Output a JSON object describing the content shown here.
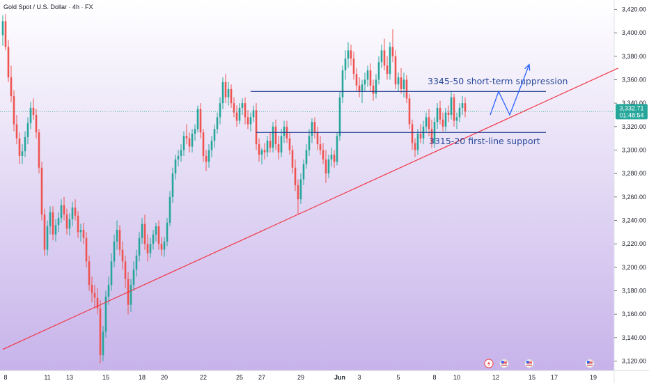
{
  "chart_data": {
    "type": "candlestick",
    "title": "Gold Spot / U.S. Dollar · 4h · FX",
    "ylim": [
      3112,
      3428
    ],
    "colors": {
      "background_top": "#ffffff",
      "background_bottom": "#c7b3ea",
      "up": "#26a69a",
      "down": "#ef5350",
      "trendline": "#f23645",
      "level_line": "#1c3a8f",
      "annotation_text": "#2a4a9a",
      "arrow": "#2962ff",
      "price_badge": "#26a69a",
      "axis_text": "#131722"
    },
    "y_ticks": [
      "3,420.00",
      "3,400.00",
      "3,380.00",
      "3,360.00",
      "3,340.00",
      "3,320.00",
      "3,300.00",
      "3,280.00",
      "3,260.00",
      "3,240.00",
      "3,220.00",
      "3,200.00",
      "3,180.00",
      "3,160.00",
      "3,140.00",
      "3,120.00"
    ],
    "y_tick_values": [
      3420,
      3400,
      3380,
      3360,
      3340,
      3320,
      3300,
      3280,
      3260,
      3240,
      3220,
      3200,
      3180,
      3160,
      3140,
      3120
    ],
    "x_tick_labels": [
      "8",
      "11",
      "13",
      "15",
      "18",
      "20",
      "22",
      "25",
      "27",
      "29",
      "Jun",
      "3",
      "5",
      "8",
      "10",
      "12",
      "15",
      "17",
      "19"
    ],
    "x_tick_index": [
      1,
      16,
      24,
      37,
      50,
      58,
      72,
      85,
      93,
      107,
      121,
      128,
      142,
      155,
      163,
      177,
      190,
      198,
      212
    ],
    "last_price": "3,332.71",
    "countdown": "01:48:54",
    "current_price_value": 3332.71,
    "annotations": [
      {
        "text": "3345-50 short-term suppression",
        "value": 3356
      },
      {
        "text": "3315-20 first-line support",
        "value": 3305
      }
    ],
    "levels": [
      {
        "name": "resistance",
        "value": 3350,
        "from_index": 89,
        "to_index": 195
      },
      {
        "name": "support",
        "value": 3315,
        "from_index": 91,
        "to_index": 195
      }
    ],
    "trendline": {
      "from_index": 0,
      "from_value": 3130,
      "to_index": 221,
      "to_value": 3370
    },
    "projection": [
      {
        "index": 175,
        "value": 3330
      },
      {
        "index": 178,
        "value": 3350
      },
      {
        "index": 182,
        "value": 3330
      },
      {
        "index": 189,
        "value": 3373
      }
    ],
    "calendar_icons": [
      "event-icon",
      "us-flag-icon",
      "us-flag-icon",
      "us-flag-icon",
      "us-flag-icon"
    ],
    "candles": [
      [
        3398,
        3415,
        3389,
        3410
      ],
      [
        3410,
        3416,
        3385,
        3388
      ],
      [
        3388,
        3394,
        3358,
        3362
      ],
      [
        3362,
        3372,
        3341,
        3346
      ],
      [
        3346,
        3351,
        3316,
        3322
      ],
      [
        3322,
        3330,
        3305,
        3310
      ],
      [
        3310,
        3315,
        3288,
        3295
      ],
      [
        3295,
        3305,
        3288,
        3299
      ],
      [
        3299,
        3316,
        3294,
        3311
      ],
      [
        3311,
        3328,
        3305,
        3323
      ],
      [
        3323,
        3341,
        3318,
        3336
      ],
      [
        3336,
        3344,
        3326,
        3330
      ],
      [
        3330,
        3335,
        3310,
        3315
      ],
      [
        3315,
        3318,
        3280,
        3285
      ],
      [
        3285,
        3290,
        3240,
        3245
      ],
      [
        3245,
        3250,
        3210,
        3215
      ],
      [
        3215,
        3240,
        3210,
        3235
      ],
      [
        3235,
        3252,
        3228,
        3247
      ],
      [
        3247,
        3252,
        3223,
        3228
      ],
      [
        3228,
        3241,
        3222,
        3236
      ],
      [
        3236,
        3247,
        3230,
        3242
      ],
      [
        3242,
        3258,
        3238,
        3253
      ],
      [
        3253,
        3260,
        3240,
        3245
      ],
      [
        3245,
        3250,
        3228,
        3233
      ],
      [
        3233,
        3246,
        3227,
        3241
      ],
      [
        3241,
        3256,
        3235,
        3251
      ],
      [
        3251,
        3258,
        3240,
        3244
      ],
      [
        3244,
        3248,
        3225,
        3230
      ],
      [
        3230,
        3237,
        3222,
        3232
      ],
      [
        3232,
        3238,
        3220,
        3225
      ],
      [
        3225,
        3230,
        3200,
        3205
      ],
      [
        3205,
        3210,
        3180,
        3185
      ],
      [
        3185,
        3192,
        3170,
        3178
      ],
      [
        3178,
        3185,
        3165,
        3174
      ],
      [
        3174,
        3182,
        3160,
        3165
      ],
      [
        3165,
        3172,
        3118,
        3125
      ],
      [
        3125,
        3150,
        3120,
        3145
      ],
      [
        3145,
        3180,
        3140,
        3175
      ],
      [
        3175,
        3192,
        3168,
        3185
      ],
      [
        3185,
        3212,
        3180,
        3205
      ],
      [
        3205,
        3228,
        3200,
        3222
      ],
      [
        3222,
        3240,
        3215,
        3232
      ],
      [
        3232,
        3236,
        3210,
        3215
      ],
      [
        3215,
        3222,
        3198,
        3205
      ],
      [
        3205,
        3210,
        3182,
        3190
      ],
      [
        3190,
        3196,
        3160,
        3168
      ],
      [
        3168,
        3190,
        3162,
        3185
      ],
      [
        3185,
        3205,
        3180,
        3198
      ],
      [
        3198,
        3215,
        3192,
        3210
      ],
      [
        3210,
        3230,
        3205,
        3225
      ],
      [
        3225,
        3242,
        3220,
        3237
      ],
      [
        3237,
        3245,
        3215,
        3220
      ],
      [
        3220,
        3228,
        3205,
        3212
      ],
      [
        3212,
        3225,
        3208,
        3220
      ],
      [
        3220,
        3232,
        3215,
        3228
      ],
      [
        3228,
        3238,
        3222,
        3235
      ],
      [
        3235,
        3240,
        3215,
        3220
      ],
      [
        3220,
        3226,
        3210,
        3215
      ],
      [
        3215,
        3226,
        3209,
        3222
      ],
      [
        3222,
        3242,
        3218,
        3238
      ],
      [
        3238,
        3265,
        3235,
        3260
      ],
      [
        3260,
        3285,
        3255,
        3280
      ],
      [
        3280,
        3296,
        3275,
        3292
      ],
      [
        3292,
        3300,
        3286,
        3295
      ],
      [
        3295,
        3305,
        3290,
        3300
      ],
      [
        3300,
        3316,
        3295,
        3312
      ],
      [
        3312,
        3322,
        3305,
        3310
      ],
      [
        3310,
        3315,
        3298,
        3303
      ],
      [
        3303,
        3318,
        3298,
        3314
      ],
      [
        3314,
        3322,
        3308,
        3318
      ],
      [
        3318,
        3338,
        3315,
        3335
      ],
      [
        3335,
        3340,
        3310,
        3315
      ],
      [
        3315,
        3318,
        3290,
        3295
      ],
      [
        3295,
        3300,
        3282,
        3290
      ],
      [
        3290,
        3305,
        3285,
        3300
      ],
      [
        3300,
        3312,
        3294,
        3308
      ],
      [
        3308,
        3322,
        3302,
        3318
      ],
      [
        3318,
        3332,
        3314,
        3328
      ],
      [
        3328,
        3345,
        3322,
        3340
      ],
      [
        3340,
        3362,
        3335,
        3358
      ],
      [
        3358,
        3365,
        3340,
        3345
      ],
      [
        3345,
        3358,
        3338,
        3352
      ],
      [
        3352,
        3356,
        3336,
        3340
      ],
      [
        3340,
        3345,
        3328,
        3332
      ],
      [
        3332,
        3338,
        3320,
        3325
      ],
      [
        3325,
        3340,
        3322,
        3336
      ],
      [
        3336,
        3344,
        3330,
        3340
      ],
      [
        3340,
        3345,
        3322,
        3328
      ],
      [
        3328,
        3334,
        3318,
        3322
      ],
      [
        3322,
        3332,
        3316,
        3328
      ],
      [
        3328,
        3338,
        3324,
        3334
      ],
      [
        3334,
        3340,
        3300,
        3305
      ],
      [
        3305,
        3310,
        3290,
        3296
      ],
      [
        3296,
        3302,
        3288,
        3300
      ],
      [
        3300,
        3306,
        3292,
        3298
      ],
      [
        3298,
        3312,
        3294,
        3308
      ],
      [
        3308,
        3315,
        3298,
        3302
      ],
      [
        3302,
        3324,
        3298,
        3320
      ],
      [
        3320,
        3326,
        3300,
        3305
      ],
      [
        3305,
        3312,
        3292,
        3298
      ],
      [
        3298,
        3318,
        3294,
        3312
      ],
      [
        3312,
        3325,
        3306,
        3320
      ],
      [
        3320,
        3325,
        3306,
        3310
      ],
      [
        3310,
        3315,
        3296,
        3300
      ],
      [
        3300,
        3304,
        3280,
        3285
      ],
      [
        3285,
        3292,
        3265,
        3270
      ],
      [
        3270,
        3275,
        3245,
        3258
      ],
      [
        3258,
        3280,
        3254,
        3275
      ],
      [
        3275,
        3292,
        3270,
        3288
      ],
      [
        3288,
        3305,
        3284,
        3300
      ],
      [
        3300,
        3318,
        3295,
        3312
      ],
      [
        3312,
        3327,
        3306,
        3324
      ],
      [
        3324,
        3328,
        3310,
        3315
      ],
      [
        3315,
        3320,
        3300,
        3305
      ],
      [
        3305,
        3312,
        3296,
        3300
      ],
      [
        3300,
        3306,
        3288,
        3292
      ],
      [
        3292,
        3300,
        3272,
        3280
      ],
      [
        3280,
        3296,
        3276,
        3292
      ],
      [
        3292,
        3302,
        3286,
        3296
      ],
      [
        3296,
        3300,
        3285,
        3290
      ],
      [
        3290,
        3315,
        3287,
        3312
      ],
      [
        3312,
        3350,
        3308,
        3345
      ],
      [
        3345,
        3372,
        3340,
        3368
      ],
      [
        3368,
        3385,
        3360,
        3378
      ],
      [
        3378,
        3392,
        3370,
        3385
      ],
      [
        3385,
        3390,
        3372,
        3378
      ],
      [
        3378,
        3384,
        3360,
        3365
      ],
      [
        3365,
        3370,
        3350,
        3355
      ],
      [
        3355,
        3362,
        3345,
        3350
      ],
      [
        3350,
        3360,
        3340,
        3356
      ],
      [
        3356,
        3366,
        3350,
        3360
      ],
      [
        3360,
        3372,
        3354,
        3368
      ],
      [
        3368,
        3374,
        3350,
        3355
      ],
      [
        3355,
        3360,
        3342,
        3348
      ],
      [
        3348,
        3365,
        3344,
        3360
      ],
      [
        3360,
        3380,
        3356,
        3375
      ],
      [
        3375,
        3390,
        3370,
        3385
      ],
      [
        3385,
        3395,
        3368,
        3372
      ],
      [
        3372,
        3380,
        3360,
        3365
      ],
      [
        3365,
        3392,
        3360,
        3388
      ],
      [
        3388,
        3403,
        3375,
        3380
      ],
      [
        3380,
        3385,
        3352,
        3356
      ],
      [
        3356,
        3366,
        3350,
        3362
      ],
      [
        3362,
        3370,
        3348,
        3352
      ],
      [
        3352,
        3366,
        3345,
        3360
      ],
      [
        3360,
        3364,
        3340,
        3344
      ],
      [
        3344,
        3348,
        3318,
        3322
      ],
      [
        3322,
        3326,
        3300,
        3306
      ],
      [
        3306,
        3310,
        3294,
        3300
      ],
      [
        3300,
        3318,
        3296,
        3314
      ],
      [
        3314,
        3322,
        3306,
        3310
      ],
      [
        3310,
        3325,
        3305,
        3320
      ],
      [
        3320,
        3332,
        3315,
        3328
      ],
      [
        3328,
        3335,
        3312,
        3318
      ],
      [
        3318,
        3326,
        3302,
        3306
      ],
      [
        3306,
        3328,
        3302,
        3324
      ],
      [
        3324,
        3340,
        3318,
        3336
      ],
      [
        3336,
        3342,
        3322,
        3326
      ],
      [
        3326,
        3332,
        3316,
        3320
      ],
      [
        3320,
        3336,
        3316,
        3332
      ],
      [
        3332,
        3338,
        3324,
        3330
      ],
      [
        3330,
        3350,
        3326,
        3345
      ],
      [
        3345,
        3348,
        3320,
        3325
      ],
      [
        3325,
        3332,
        3318,
        3328
      ],
      [
        3328,
        3340,
        3324,
        3336
      ],
      [
        3336,
        3346,
        3330,
        3340
      ],
      [
        3340,
        3345,
        3328,
        3333
      ]
    ]
  }
}
